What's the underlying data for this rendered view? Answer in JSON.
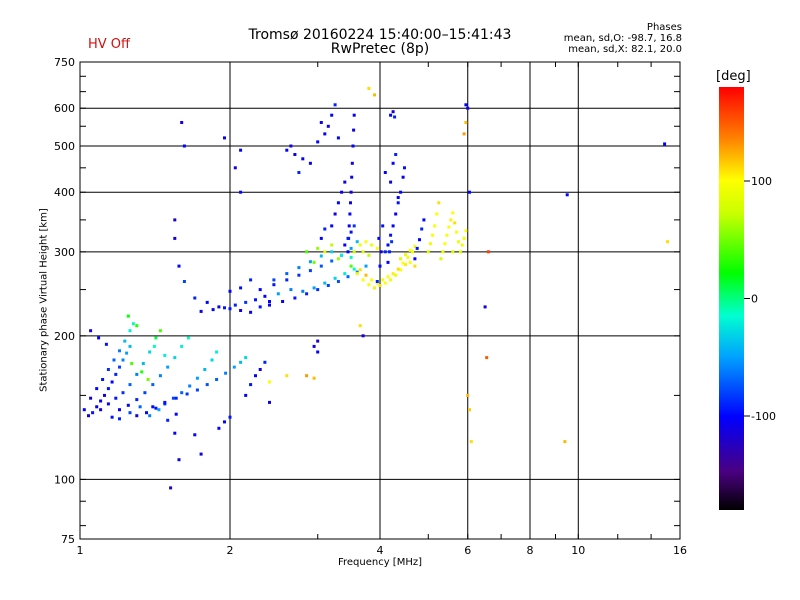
{
  "header": {
    "title": "Tromsø 20160224 15:40:00–15:41:43",
    "subtitle": "RwPretec (8p)",
    "hv_status": "HV Off",
    "hv_color": "#d01010"
  },
  "phases": {
    "title": "Phases",
    "o_line": "mean, sd,O: -98.7, 16.8",
    "x_line": "mean, sd,X:  82.1, 20.0"
  },
  "colorbar": {
    "title": "[deg]",
    "ticks": [
      {
        "value": 100,
        "label": "100"
      },
      {
        "value": 0,
        "label": "0"
      },
      {
        "value": -100,
        "label": "-100"
      }
    ],
    "range": [
      -180,
      180
    ]
  },
  "chart_data": {
    "type": "scatter",
    "xlabel": "Frequency [MHz]",
    "ylabel": "Stationary phase Virtual Height [km]",
    "xscale": "log",
    "yscale": "log",
    "xlim": [
      1,
      16
    ],
    "ylim": [
      75,
      750
    ],
    "xticks": [
      {
        "value": 1,
        "label": "1"
      },
      {
        "value": 2,
        "label": "2"
      },
      {
        "value": 4,
        "label": "4"
      },
      {
        "value": 6,
        "label": "6"
      },
      {
        "value": 8,
        "label": "8"
      },
      {
        "value": 10,
        "label": "10"
      },
      {
        "value": 16,
        "label": "16"
      }
    ],
    "yticks": [
      {
        "value": 75,
        "label": "75"
      },
      {
        "value": 100,
        "label": "100"
      },
      {
        "value": 200,
        "label": "200"
      },
      {
        "value": 300,
        "label": "300"
      },
      {
        "value": 400,
        "label": "400"
      },
      {
        "value": 500,
        "label": "500"
      },
      {
        "value": 600,
        "label": "600"
      },
      {
        "value": 750,
        "label": "750"
      }
    ],
    "grid": true,
    "color_key": "phase",
    "points": [
      [
        1.02,
        140,
        -100
      ],
      [
        1.04,
        136,
        -110
      ],
      [
        1.06,
        138,
        -95
      ],
      [
        1.08,
        142,
        -105
      ],
      [
        1.1,
        146,
        -100
      ],
      [
        1.12,
        150,
        -110
      ],
      [
        1.14,
        155,
        -95
      ],
      [
        1.16,
        160,
        -100
      ],
      [
        1.18,
        166,
        -90
      ],
      [
        1.2,
        172,
        -80
      ],
      [
        1.22,
        178,
        -60
      ],
      [
        1.24,
        184,
        -50
      ],
      [
        1.26,
        190,
        -40
      ],
      [
        1.05,
        148,
        -110
      ],
      [
        1.08,
        155,
        -100
      ],
      [
        1.11,
        162,
        -95
      ],
      [
        1.14,
        170,
        -85
      ],
      [
        1.17,
        178,
        -70
      ],
      [
        1.2,
        186,
        -60
      ],
      [
        1.23,
        195,
        -40
      ],
      [
        1.26,
        205,
        -20
      ],
      [
        1.28,
        212,
        -10
      ],
      [
        1.1,
        140,
        -110
      ],
      [
        1.14,
        144,
        -100
      ],
      [
        1.18,
        148,
        -95
      ],
      [
        1.22,
        152,
        -85
      ],
      [
        1.26,
        158,
        -70
      ],
      [
        1.3,
        166,
        -60
      ],
      [
        1.34,
        175,
        -40
      ],
      [
        1.38,
        185,
        -30
      ],
      [
        1.42,
        198,
        10
      ],
      [
        1.45,
        205,
        40
      ],
      [
        1.2,
        140,
        -105
      ],
      [
        1.25,
        143,
        -100
      ],
      [
        1.3,
        147,
        -90
      ],
      [
        1.35,
        152,
        -80
      ],
      [
        1.4,
        158,
        -70
      ],
      [
        1.45,
        165,
        -60
      ],
      [
        1.5,
        172,
        -50
      ],
      [
        1.55,
        180,
        -30
      ],
      [
        1.6,
        190,
        -20
      ],
      [
        1.65,
        198,
        -10
      ],
      [
        1.3,
        136,
        -110
      ],
      [
        1.36,
        138,
        -100
      ],
      [
        1.42,
        141,
        -95
      ],
      [
        1.48,
        144,
        -85
      ],
      [
        1.54,
        148,
        -80
      ],
      [
        1.6,
        152,
        -70
      ],
      [
        1.66,
        157,
        -60
      ],
      [
        1.72,
        163,
        -50
      ],
      [
        1.78,
        170,
        -40
      ],
      [
        1.84,
        178,
        -30
      ],
      [
        1.88,
        185,
        -20
      ],
      [
        1.4,
        142,
        -100
      ],
      [
        1.48,
        145,
        -95
      ],
      [
        1.56,
        148,
        -90
      ],
      [
        1.64,
        151,
        -85
      ],
      [
        1.72,
        154,
        -80
      ],
      [
        1.8,
        158,
        -75
      ],
      [
        1.88,
        162,
        -70
      ],
      [
        1.96,
        167,
        -60
      ],
      [
        2.04,
        172,
        -50
      ],
      [
        2.1,
        176,
        -40
      ],
      [
        2.15,
        180,
        -30
      ],
      [
        1.16,
        135,
        -95
      ],
      [
        1.2,
        134,
        -90
      ],
      [
        1.26,
        138,
        -80
      ],
      [
        1.32,
        142,
        -70
      ],
      [
        1.38,
        136,
        -60
      ],
      [
        1.44,
        140,
        -50
      ],
      [
        1.5,
        133,
        -90
      ],
      [
        1.56,
        137,
        -100
      ],
      [
        1.05,
        205,
        -110
      ],
      [
        1.09,
        198,
        -100
      ],
      [
        1.13,
        192,
        -95
      ],
      [
        1.27,
        175,
        40
      ],
      [
        1.33,
        168,
        30
      ],
      [
        1.37,
        162,
        50
      ],
      [
        1.25,
        220,
        20
      ],
      [
        1.3,
        210,
        30
      ],
      [
        1.41,
        190,
        -10
      ],
      [
        1.48,
        182,
        -20
      ],
      [
        1.55,
        125,
        -100
      ],
      [
        1.58,
        110,
        -110
      ],
      [
        1.52,
        96,
        -120
      ],
      [
        1.75,
        113,
        -110
      ],
      [
        1.95,
        132,
        -100
      ],
      [
        1.75,
        225,
        -105
      ],
      [
        1.85,
        227,
        -100
      ],
      [
        1.95,
        229,
        -95
      ],
      [
        2.05,
        232,
        -90
      ],
      [
        2.15,
        235,
        -85
      ],
      [
        2.25,
        238,
        -95
      ],
      [
        2.35,
        242,
        -105
      ],
      [
        1.8,
        235,
        -100
      ],
      [
        1.9,
        230,
        -105
      ],
      [
        2.0,
        228,
        -95
      ],
      [
        2.1,
        226,
        -110
      ],
      [
        2.2,
        224,
        -100
      ],
      [
        2.3,
        230,
        -95
      ],
      [
        2.4,
        236,
        -100
      ],
      [
        1.7,
        240,
        -90
      ],
      [
        1.62,
        260,
        -80
      ],
      [
        1.58,
        280,
        -100
      ],
      [
        1.55,
        320,
        -110
      ],
      [
        1.55,
        350,
        -120
      ],
      [
        2.0,
        248,
        -100
      ],
      [
        2.1,
        252,
        -95
      ],
      [
        2.2,
        262,
        -90
      ],
      [
        2.3,
        250,
        -100
      ],
      [
        2.45,
        256,
        -95
      ],
      [
        2.6,
        262,
        -90
      ],
      [
        2.75,
        268,
        -85
      ],
      [
        2.9,
        274,
        -80
      ],
      [
        3.05,
        280,
        -75
      ],
      [
        3.2,
        287,
        -70
      ],
      [
        3.35,
        295,
        -60
      ],
      [
        3.5,
        305,
        -50
      ],
      [
        3.6,
        315,
        -40
      ],
      [
        2.4,
        232,
        -105
      ],
      [
        2.55,
        236,
        -100
      ],
      [
        2.7,
        240,
        -95
      ],
      [
        2.85,
        245,
        -90
      ],
      [
        3.0,
        250,
        -85
      ],
      [
        3.15,
        255,
        -80
      ],
      [
        3.3,
        260,
        -75
      ],
      [
        3.45,
        266,
        -70
      ],
      [
        3.6,
        272,
        -60
      ],
      [
        3.75,
        280,
        -50
      ],
      [
        2.45,
        262,
        -80
      ],
      [
        2.6,
        270,
        -70
      ],
      [
        2.75,
        278,
        -60
      ],
      [
        2.9,
        286,
        -50
      ],
      [
        3.05,
        294,
        -40
      ],
      [
        3.2,
        300,
        -30
      ],
      [
        3.35,
        295,
        -20
      ],
      [
        3.5,
        292,
        -10
      ],
      [
        2.8,
        248,
        -60
      ],
      [
        2.95,
        252,
        -50
      ],
      [
        3.1,
        258,
        -40
      ],
      [
        3.25,
        264,
        -30
      ],
      [
        3.4,
        270,
        -20
      ],
      [
        3.55,
        276,
        -10
      ],
      [
        3.45,
        300,
        -100
      ],
      [
        3.46,
        320,
        -110
      ],
      [
        3.47,
        340,
        -105
      ],
      [
        3.48,
        360,
        -100
      ],
      [
        3.49,
        380,
        -110
      ],
      [
        3.5,
        400,
        -115
      ],
      [
        3.51,
        430,
        -105
      ],
      [
        3.52,
        460,
        -110
      ],
      [
        3.53,
        500,
        -100
      ],
      [
        3.54,
        540,
        -110
      ],
      [
        3.55,
        580,
        -105
      ],
      [
        3.2,
        340,
        -100
      ],
      [
        3.25,
        360,
        -110
      ],
      [
        3.3,
        380,
        -100
      ],
      [
        3.35,
        400,
        -105
      ],
      [
        3.4,
        420,
        -110
      ],
      [
        3.05,
        320,
        -100
      ],
      [
        3.1,
        335,
        -90
      ],
      [
        3.4,
        310,
        -100
      ],
      [
        3.45,
        320,
        -90
      ],
      [
        3.5,
        330,
        -95
      ],
      [
        3.55,
        340,
        -85
      ],
      [
        2.6,
        490,
        -100
      ],
      [
        2.7,
        480,
        -110
      ],
      [
        2.8,
        470,
        -100
      ],
      [
        2.9,
        460,
        -105
      ],
      [
        2.75,
        440,
        -90
      ],
      [
        2.65,
        500,
        -110
      ],
      [
        3.0,
        510,
        -100
      ],
      [
        3.1,
        530,
        -105
      ],
      [
        3.15,
        550,
        -110
      ],
      [
        3.2,
        580,
        -100
      ],
      [
        3.25,
        610,
        -90
      ],
      [
        3.05,
        560,
        -110
      ],
      [
        3.3,
        520,
        -100
      ],
      [
        2.1,
        400,
        -100
      ],
      [
        2.05,
        450,
        -110
      ],
      [
        2.1,
        490,
        -100
      ],
      [
        1.95,
        520,
        -105
      ],
      [
        1.6,
        560,
        -110
      ],
      [
        1.62,
        500,
        -100
      ],
      [
        2.65,
        250,
        -60
      ],
      [
        2.5,
        245,
        -50
      ],
      [
        2.85,
        300,
        40
      ],
      [
        3.0,
        305,
        60
      ],
      [
        3.1,
        300,
        80
      ],
      [
        3.2,
        310,
        70
      ],
      [
        3.3,
        290,
        60
      ],
      [
        2.95,
        285,
        50
      ],
      [
        3.5,
        280,
        40
      ],
      [
        3.55,
        300,
        70
      ],
      [
        3.65,
        310,
        90
      ],
      [
        3.75,
        315,
        100
      ],
      [
        3.85,
        310,
        90
      ],
      [
        3.95,
        305,
        100
      ],
      [
        3.7,
        300,
        80
      ],
      [
        3.8,
        295,
        70
      ],
      [
        3.6,
        270,
        90
      ],
      [
        3.7,
        262,
        100
      ],
      [
        3.8,
        256,
        95
      ],
      [
        3.9,
        252,
        105
      ],
      [
        4.0,
        255,
        110
      ],
      [
        4.1,
        258,
        100
      ],
      [
        4.2,
        262,
        95
      ],
      [
        4.3,
        268,
        90
      ],
      [
        4.4,
        275,
        100
      ],
      [
        4.5,
        282,
        105
      ],
      [
        3.65,
        275,
        110
      ],
      [
        3.75,
        268,
        120
      ],
      [
        3.85,
        262,
        100
      ],
      [
        3.95,
        258,
        90
      ],
      [
        4.05,
        262,
        95
      ],
      [
        4.15,
        266,
        100
      ],
      [
        4.25,
        270,
        105
      ],
      [
        4.35,
        276,
        110
      ],
      [
        4.45,
        284,
        100
      ],
      [
        4.55,
        292,
        95
      ],
      [
        4.65,
        300,
        90
      ],
      [
        4.4,
        290,
        80
      ],
      [
        4.5,
        296,
        90
      ],
      [
        4.6,
        302,
        100
      ],
      [
        4.7,
        308,
        95
      ],
      [
        4.6,
        285,
        100
      ],
      [
        4.7,
        280,
        110
      ],
      [
        4.1,
        300,
        -90
      ],
      [
        4.15,
        310,
        -100
      ],
      [
        4.2,
        325,
        -95
      ],
      [
        4.25,
        340,
        -100
      ],
      [
        4.3,
        360,
        -105
      ],
      [
        4.35,
        380,
        -95
      ],
      [
        4.4,
        400,
        -100
      ],
      [
        4.45,
        430,
        -105
      ],
      [
        4.48,
        450,
        -95
      ],
      [
        4.1,
        440,
        -100
      ],
      [
        4.2,
        420,
        -110
      ],
      [
        4.25,
        460,
        -100
      ],
      [
        4.3,
        480,
        -90
      ],
      [
        4.35,
        390,
        -100
      ],
      [
        3.95,
        260,
        -90
      ],
      [
        4.0,
        280,
        -100
      ],
      [
        4.02,
        300,
        -110
      ],
      [
        3.98,
        320,
        -100
      ],
      [
        4.05,
        340,
        -95
      ],
      [
        4.15,
        285,
        -100
      ],
      [
        4.18,
        300,
        -90
      ],
      [
        4.22,
        315,
        -85
      ],
      [
        4.2,
        580,
        -100
      ],
      [
        4.25,
        590,
        -110
      ],
      [
        4.28,
        575,
        -90
      ],
      [
        4.7,
        290,
        -100
      ],
      [
        4.75,
        305,
        -95
      ],
      [
        4.8,
        318,
        -100
      ],
      [
        4.85,
        335,
        -90
      ],
      [
        4.9,
        350,
        -100
      ],
      [
        5.0,
        300,
        80
      ],
      [
        5.05,
        312,
        90
      ],
      [
        5.1,
        325,
        100
      ],
      [
        5.15,
        340,
        95
      ],
      [
        5.2,
        360,
        100
      ],
      [
        5.25,
        380,
        110
      ],
      [
        5.3,
        290,
        80
      ],
      [
        5.35,
        300,
        90
      ],
      [
        5.4,
        312,
        100
      ],
      [
        5.45,
        325,
        95
      ],
      [
        5.5,
        338,
        100
      ],
      [
        5.55,
        350,
        105
      ],
      [
        5.6,
        362,
        100
      ],
      [
        5.65,
        345,
        110
      ],
      [
        5.7,
        330,
        100
      ],
      [
        5.75,
        315,
        90
      ],
      [
        5.8,
        300,
        80
      ],
      [
        5.85,
        310,
        90
      ],
      [
        5.9,
        320,
        95
      ],
      [
        5.95,
        332,
        100
      ],
      [
        5.6,
        300,
        80
      ],
      [
        5.95,
        610,
        -100
      ],
      [
        6.0,
        600,
        -110
      ],
      [
        5.95,
        560,
        120
      ],
      [
        5.9,
        530,
        130
      ],
      [
        6.05,
        400,
        -100
      ],
      [
        6.1,
        120,
        110
      ],
      [
        6.05,
        140,
        115
      ],
      [
        6.0,
        150,
        120
      ],
      [
        6.5,
        230,
        -110
      ],
      [
        6.55,
        180,
        150
      ],
      [
        6.6,
        300,
        160
      ],
      [
        9.5,
        395,
        -100
      ],
      [
        9.4,
        120,
        120
      ],
      [
        14.9,
        505,
        -100
      ],
      [
        15.1,
        315,
        110
      ],
      [
        3.8,
        660,
        110
      ],
      [
        3.9,
        640,
        120
      ],
      [
        2.4,
        160,
        100
      ],
      [
        2.6,
        165,
        110
      ],
      [
        2.85,
        165,
        130
      ],
      [
        2.95,
        163,
        120
      ],
      [
        3.65,
        210,
        110
      ],
      [
        3.7,
        200,
        -110
      ],
      [
        2.95,
        190,
        -110
      ],
      [
        3.0,
        195,
        -120
      ],
      [
        3.0,
        185,
        -100
      ],
      [
        2.4,
        145,
        -110
      ],
      [
        2.15,
        150,
        -100
      ],
      [
        2.2,
        158,
        -95
      ],
      [
        2.25,
        165,
        -100
      ],
      [
        2.3,
        170,
        -110
      ],
      [
        2.35,
        176,
        -90
      ],
      [
        1.7,
        124,
        -100
      ],
      [
        1.9,
        128,
        -100
      ],
      [
        2.0,
        135,
        -95
      ]
    ]
  }
}
